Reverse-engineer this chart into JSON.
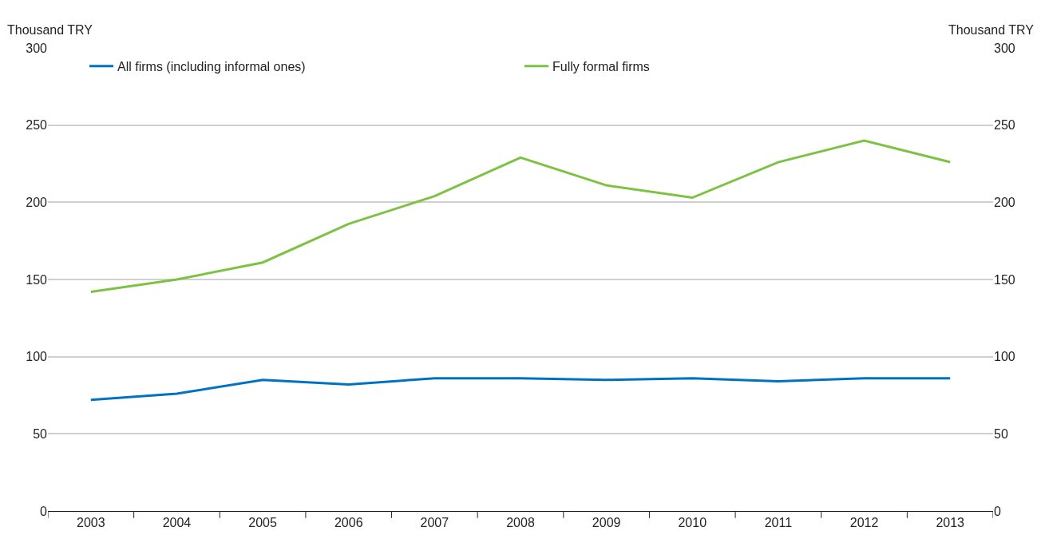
{
  "chart_data": {
    "type": "line",
    "categories": [
      "2003",
      "2004",
      "2005",
      "2006",
      "2007",
      "2008",
      "2009",
      "2010",
      "2011",
      "2012",
      "2013"
    ],
    "series": [
      {
        "name": "All firms (including informal ones)",
        "color": "#0072c6",
        "values": [
          72,
          76,
          85,
          82,
          86,
          86,
          85,
          86,
          84,
          86,
          86
        ]
      },
      {
        "name": "Fully formal firms",
        "color": "#7dc242",
        "values": [
          142,
          150,
          161,
          186,
          204,
          229,
          211,
          203,
          226,
          240,
          226
        ]
      }
    ],
    "ylabel": "Thousand TRY",
    "y2label": "Thousand TRY",
    "ylim": [
      0,
      300
    ],
    "yticks": [
      0,
      50,
      100,
      150,
      200,
      250,
      300
    ],
    "y2lim": [
      0,
      300
    ],
    "y2ticks": [
      0,
      50,
      100,
      150,
      200,
      250,
      300
    ],
    "grid": "y",
    "legend": "top",
    "marker": "none",
    "line_style": "solid"
  }
}
